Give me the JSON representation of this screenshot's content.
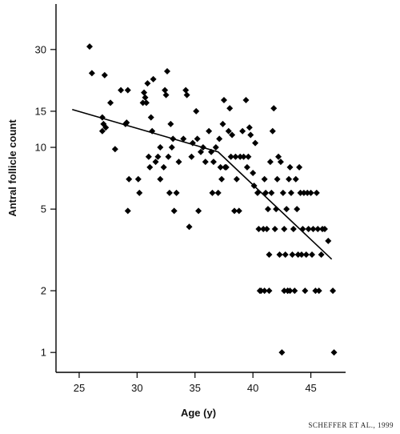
{
  "chart_data": {
    "type": "scatter",
    "xlabel": "Age (y)",
    "ylabel": "Antral follicle count",
    "y_scale": "log",
    "xlim": [
      23,
      48
    ],
    "ylim": [
      0.8,
      50
    ],
    "x_ticks": [
      25,
      30,
      35,
      40,
      45
    ],
    "y_ticks": [
      1,
      2,
      5,
      10,
      15,
      30
    ],
    "grid": false,
    "legend": "none",
    "marker": "diamond",
    "color": "#000000",
    "points": [
      [
        25.9,
        31
      ],
      [
        26.1,
        23
      ],
      [
        27.0,
        12
      ],
      [
        27.1,
        13
      ],
      [
        27.0,
        14
      ],
      [
        27.3,
        12.5
      ],
      [
        27.2,
        22.5
      ],
      [
        27.7,
        16.5
      ],
      [
        28.1,
        9.8
      ],
      [
        28.6,
        19
      ],
      [
        29.0,
        13
      ],
      [
        29.1,
        13.2
      ],
      [
        29.2,
        19
      ],
      [
        29.3,
        7
      ],
      [
        29.2,
        4.9
      ],
      [
        30.1,
        7
      ],
      [
        30.2,
        6
      ],
      [
        30.6,
        18.5
      ],
      [
        30.5,
        16.5
      ],
      [
        30.8,
        16.5
      ],
      [
        30.7,
        17.5
      ],
      [
        30.9,
        20.5
      ],
      [
        31.0,
        9
      ],
      [
        31.1,
        8
      ],
      [
        31.2,
        14
      ],
      [
        31.3,
        12
      ],
      [
        31.4,
        21.5
      ],
      [
        31.6,
        8.5
      ],
      [
        31.8,
        9
      ],
      [
        32.0,
        10
      ],
      [
        32.0,
        7
      ],
      [
        32.3,
        8
      ],
      [
        32.4,
        19
      ],
      [
        32.5,
        18
      ],
      [
        32.6,
        23.5
      ],
      [
        32.7,
        9
      ],
      [
        32.8,
        6
      ],
      [
        32.9,
        13
      ],
      [
        33.0,
        10
      ],
      [
        33.1,
        11
      ],
      [
        33.2,
        4.9
      ],
      [
        33.4,
        6
      ],
      [
        33.6,
        8.5
      ],
      [
        34.0,
        11
      ],
      [
        34.2,
        19
      ],
      [
        34.3,
        18
      ],
      [
        34.5,
        4.1
      ],
      [
        34.7,
        9
      ],
      [
        34.8,
        10.5
      ],
      [
        35.1,
        15
      ],
      [
        35.2,
        11
      ],
      [
        35.3,
        4.9
      ],
      [
        35.5,
        9.5
      ],
      [
        35.7,
        10
      ],
      [
        35.9,
        8.5
      ],
      [
        36.2,
        12
      ],
      [
        36.4,
        9.5
      ],
      [
        36.5,
        6
      ],
      [
        36.6,
        8.5
      ],
      [
        36.8,
        10
      ],
      [
        37.0,
        6
      ],
      [
        37.1,
        11
      ],
      [
        37.2,
        8
      ],
      [
        37.3,
        7
      ],
      [
        37.5,
        17
      ],
      [
        37.4,
        13
      ],
      [
        37.6,
        8
      ],
      [
        37.7,
        8
      ],
      [
        37.9,
        12
      ],
      [
        38.0,
        15.5
      ],
      [
        38.1,
        9
      ],
      [
        38.2,
        11.5
      ],
      [
        38.4,
        4.9
      ],
      [
        38.5,
        9
      ],
      [
        38.6,
        7
      ],
      [
        38.8,
        4.9
      ],
      [
        38.9,
        9
      ],
      [
        39.1,
        12
      ],
      [
        39.2,
        9
      ],
      [
        39.4,
        17
      ],
      [
        39.5,
        8
      ],
      [
        39.6,
        9
      ],
      [
        39.7,
        12.5
      ],
      [
        39.8,
        11.5
      ],
      [
        40.0,
        7.5
      ],
      [
        40.1,
        6.5
      ],
      [
        40.2,
        10.5
      ],
      [
        40.4,
        6
      ],
      [
        40.5,
        4
      ],
      [
        40.7,
        2
      ],
      [
        40.9,
        4
      ],
      [
        41.0,
        7
      ],
      [
        41.1,
        6
      ],
      [
        41.2,
        4
      ],
      [
        41.3,
        5
      ],
      [
        41.4,
        3
      ],
      [
        41.4,
        2
      ],
      [
        41.5,
        8.5
      ],
      [
        41.6,
        6
      ],
      [
        41.7,
        12
      ],
      [
        41.8,
        15.5
      ],
      [
        41.9,
        4
      ],
      [
        42.0,
        5
      ],
      [
        42.1,
        7
      ],
      [
        42.2,
        9
      ],
      [
        42.3,
        3
      ],
      [
        42.4,
        8.5
      ],
      [
        42.5,
        1
      ],
      [
        42.6,
        6
      ],
      [
        42.7,
        4
      ],
      [
        42.8,
        3
      ],
      [
        42.9,
        5
      ],
      [
        43.0,
        2
      ],
      [
        43.1,
        7
      ],
      [
        43.2,
        8
      ],
      [
        43.3,
        6
      ],
      [
        43.4,
        3
      ],
      [
        43.5,
        4
      ],
      [
        43.6,
        2
      ],
      [
        43.7,
        7
      ],
      [
        43.8,
        5
      ],
      [
        43.9,
        3
      ],
      [
        44.0,
        8
      ],
      [
        44.1,
        6
      ],
      [
        44.2,
        3
      ],
      [
        44.3,
        4
      ],
      [
        44.4,
        6
      ],
      [
        44.5,
        2
      ],
      [
        44.6,
        3
      ],
      [
        44.7,
        6
      ],
      [
        44.8,
        4
      ],
      [
        45.0,
        6
      ],
      [
        45.1,
        3
      ],
      [
        45.2,
        4
      ],
      [
        45.4,
        2
      ],
      [
        45.5,
        6
      ],
      [
        45.6,
        4
      ],
      [
        45.7,
        2
      ],
      [
        45.9,
        3
      ],
      [
        46.0,
        4
      ],
      [
        46.2,
        4
      ],
      [
        46.5,
        3.5
      ],
      [
        46.9,
        2
      ],
      [
        47.0,
        1
      ],
      [
        43.0,
        2
      ],
      [
        42.7,
        2
      ],
      [
        43.2,
        2
      ],
      [
        41.0,
        2
      ],
      [
        40.6,
        2
      ]
    ],
    "fit_line": [
      [
        24.4,
        15.3
      ],
      [
        37.0,
        9.5
      ],
      [
        46.8,
        2.85
      ]
    ]
  },
  "source_credit": "SCHEFFER ET AL., 1999"
}
